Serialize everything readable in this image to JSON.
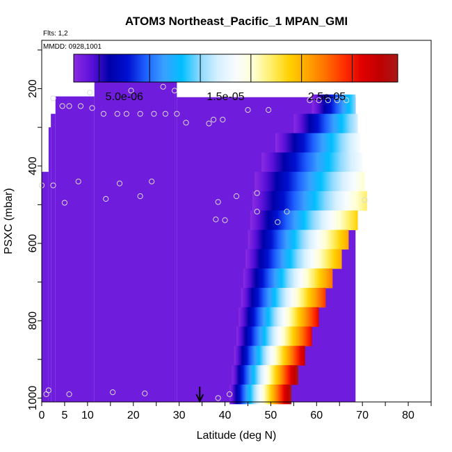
{
  "chart_data": {
    "type": "heatmap",
    "title": "ATOM3 Northeast_Pacific_1 MPAN_GMI",
    "flights_label": "Flts: 1,2",
    "date_label": "MMDD: 0928,1001",
    "xlabel": "Latitude (deg N)",
    "ylabel": "PSXC (mbar)",
    "xlim": [
      0,
      85
    ],
    "ylim": [
      1010,
      75
    ],
    "x_ticks": [
      0,
      5,
      10,
      20,
      30,
      40,
      50,
      60,
      70,
      80
    ],
    "y_ticks": [
      200,
      400,
      600,
      800,
      1000
    ],
    "colorbar": {
      "min": 0,
      "max": 3.2e-05,
      "tick_values": [
        5e-06,
        1.5e-05,
        2.5e-05
      ],
      "tick_labels": [
        "5.0e-06",
        "1.5e-05",
        "2.5e-05"
      ],
      "colors": [
        "#8a2be2",
        "#5a10d8",
        "#0000a8",
        "#0010d0",
        "#1e60ff",
        "#3aa0ff",
        "#00bfff",
        "#8ad8ff",
        "#d6f0ff",
        "#f8fcff",
        "#ffffd0",
        "#ffee66",
        "#ffd000",
        "#ffa500",
        "#ff7000",
        "#ff3000",
        "#e00000",
        "#c00000",
        "#a81818"
      ]
    },
    "background_value": 1e-06,
    "profile_top_pressure": [
      [
        0,
        415
      ],
      [
        1.5,
        300
      ],
      [
        2,
        265
      ],
      [
        3,
        220
      ],
      [
        11,
        220
      ],
      [
        11.5,
        175
      ],
      [
        29,
        175
      ],
      [
        29.5,
        222
      ],
      [
        68.5,
        222
      ]
    ],
    "field_rows": [
      {
        "p": 240,
        "lat0": 59,
        "lat1": 68.5
      },
      {
        "p": 290,
        "lat0": 55,
        "lat1": 69
      },
      {
        "p": 340,
        "lat0": 51,
        "lat1": 69.5
      },
      {
        "p": 390,
        "lat0": 48,
        "lat1": 70
      },
      {
        "p": 440,
        "lat0": 46.5,
        "lat1": 70.5
      },
      {
        "p": 490,
        "lat0": 46,
        "lat1": 71
      },
      {
        "p": 540,
        "lat0": 45.5,
        "lat1": 69
      },
      {
        "p": 590,
        "lat0": 45,
        "lat1": 67
      },
      {
        "p": 640,
        "lat0": 44.5,
        "lat1": 65.5
      },
      {
        "p": 690,
        "lat0": 44,
        "lat1": 63.5
      },
      {
        "p": 740,
        "lat0": 43.5,
        "lat1": 62
      },
      {
        "p": 790,
        "lat0": 43,
        "lat1": 60.5
      },
      {
        "p": 840,
        "lat0": 42.5,
        "lat1": 59
      },
      {
        "p": 890,
        "lat0": 42,
        "lat1": 57.5
      },
      {
        "p": 940,
        "lat0": 41.5,
        "lat1": 56
      },
      {
        "p": 990,
        "lat0": 41,
        "lat1": 54.5
      }
    ],
    "observations": [
      {
        "lat": 1,
        "p": 990
      },
      {
        "lat": 1.5,
        "p": 980
      },
      {
        "lat": 6,
        "p": 990
      },
      {
        "lat": 15.5,
        "p": 985
      },
      {
        "lat": 22.5,
        "p": 988
      },
      {
        "lat": 0,
        "p": 450
      },
      {
        "lat": 2.5,
        "p": 225
      },
      {
        "lat": 2.5,
        "p": 450
      },
      {
        "lat": 4.5,
        "p": 245
      },
      {
        "lat": 5,
        "p": 495
      },
      {
        "lat": 6,
        "p": 245
      },
      {
        "lat": 8,
        "p": 440
      },
      {
        "lat": 8.5,
        "p": 245
      },
      {
        "lat": 10.5,
        "p": 210
      },
      {
        "lat": 11,
        "p": 250
      },
      {
        "lat": 13.5,
        "p": 265
      },
      {
        "lat": 14,
        "p": 485
      },
      {
        "lat": 16.5,
        "p": 265
      },
      {
        "lat": 17,
        "p": 445
      },
      {
        "lat": 18.5,
        "p": 265
      },
      {
        "lat": 19.5,
        "p": 205
      },
      {
        "lat": 21.5,
        "p": 478
      },
      {
        "lat": 21.5,
        "p": 265
      },
      {
        "lat": 24,
        "p": 440
      },
      {
        "lat": 24.5,
        "p": 265
      },
      {
        "lat": 26.5,
        "p": 195
      },
      {
        "lat": 27,
        "p": 265
      },
      {
        "lat": 29,
        "p": 205
      },
      {
        "lat": 29.5,
        "p": 265
      },
      {
        "lat": 31.5,
        "p": 288
      },
      {
        "lat": 36.5,
        "p": 290
      },
      {
        "lat": 37.5,
        "p": 280
      },
      {
        "lat": 38,
        "p": 538
      },
      {
        "lat": 38.5,
        "p": 493
      },
      {
        "lat": 38.5,
        "p": 1000
      },
      {
        "lat": 39.5,
        "p": 280
      },
      {
        "lat": 40,
        "p": 540
      },
      {
        "lat": 41,
        "p": 990
      },
      {
        "lat": 42.5,
        "p": 478
      },
      {
        "lat": 45,
        "p": 255
      },
      {
        "lat": 47,
        "p": 470
      },
      {
        "lat": 47,
        "p": 518
      },
      {
        "lat": 49.5,
        "p": 255
      },
      {
        "lat": 51.5,
        "p": 545
      },
      {
        "lat": 53.5,
        "p": 518
      },
      {
        "lat": 58.5,
        "p": 230
      },
      {
        "lat": 60.5,
        "p": 230
      },
      {
        "lat": 62.5,
        "p": 230
      },
      {
        "lat": 64.5,
        "p": 230
      },
      {
        "lat": 66.5,
        "p": 230
      },
      {
        "lat": 70.5,
        "p": 488
      }
    ],
    "marker_latitude": 34.5
  }
}
